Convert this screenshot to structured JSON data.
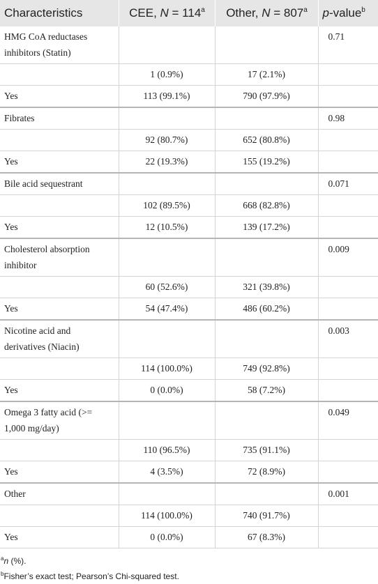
{
  "table": {
    "header": [
      {
        "label": "Characteristics"
      },
      {
        "label": "CEE, ",
        "var": "N",
        "count": " = 114",
        "note": "a"
      },
      {
        "label": "Other, ",
        "var": "N",
        "count": " = 807",
        "note": "a"
      },
      {
        "var": "p",
        "label": "-value",
        "note": "b"
      }
    ],
    "groups": [
      {
        "name": "HMG CoA reductases inhibitors (Statin)",
        "p": "0.71",
        "rows": [
          {
            "label": null,
            "cee": "1 (0.9%)",
            "other": "17 (2.1%)"
          },
          {
            "label": "Yes",
            "cee": "113 (99.1%)",
            "other": "790 (97.9%)"
          }
        ]
      },
      {
        "name": "Fibrates",
        "p": "0.98",
        "rows": [
          {
            "label": null,
            "cee": "92 (80.7%)",
            "other": "652 (80.8%)"
          },
          {
            "label": "Yes",
            "cee": "22 (19.3%)",
            "other": "155 (19.2%)"
          }
        ]
      },
      {
        "name": "Bile acid sequestrant",
        "p": "0.071",
        "rows": [
          {
            "label": null,
            "cee": "102 (89.5%)",
            "other": "668 (82.8%)"
          },
          {
            "label": "Yes",
            "cee": "12 (10.5%)",
            "other": "139 (17.2%)"
          }
        ]
      },
      {
        "name": "Cholesterol absorption inhibitor",
        "p": "0.009",
        "rows": [
          {
            "label": null,
            "cee": "60 (52.6%)",
            "other": "321 (39.8%)"
          },
          {
            "label": "Yes",
            "cee": "54 (47.4%)",
            "other": "486 (60.2%)"
          }
        ]
      },
      {
        "name": "Nicotine acid and derivatives (Niacin)",
        "p": "0.003",
        "rows": [
          {
            "label": null,
            "cee": "114 (100.0%)",
            "other": "749 (92.8%)"
          },
          {
            "label": "Yes",
            "cee": "0 (0.0%)",
            "other": "58 (7.2%)"
          }
        ]
      },
      {
        "name": "Omega 3 fatty acid (>= 1,000 mg/day)",
        "p": "0.049",
        "rows": [
          {
            "label": null,
            "cee": "110 (96.5%)",
            "other": "735 (91.1%)"
          },
          {
            "label": "Yes",
            "cee": "4 (3.5%)",
            "other": "72 (8.9%)"
          }
        ]
      },
      {
        "name": "Other",
        "p": "0.001",
        "rows": [
          {
            "label": null,
            "cee": "114 (100.0%)",
            "other": "740 (91.7%)"
          },
          {
            "label": "Yes",
            "cee": "0 (0.0%)",
            "other": "67 (8.3%)"
          }
        ]
      }
    ]
  },
  "footnotes": [
    {
      "mark": "a",
      "var": "n",
      "text": " (%)."
    },
    {
      "mark": "b",
      "text": "Fisher’s exact test; Pearson’s Chi-squared test."
    }
  ]
}
